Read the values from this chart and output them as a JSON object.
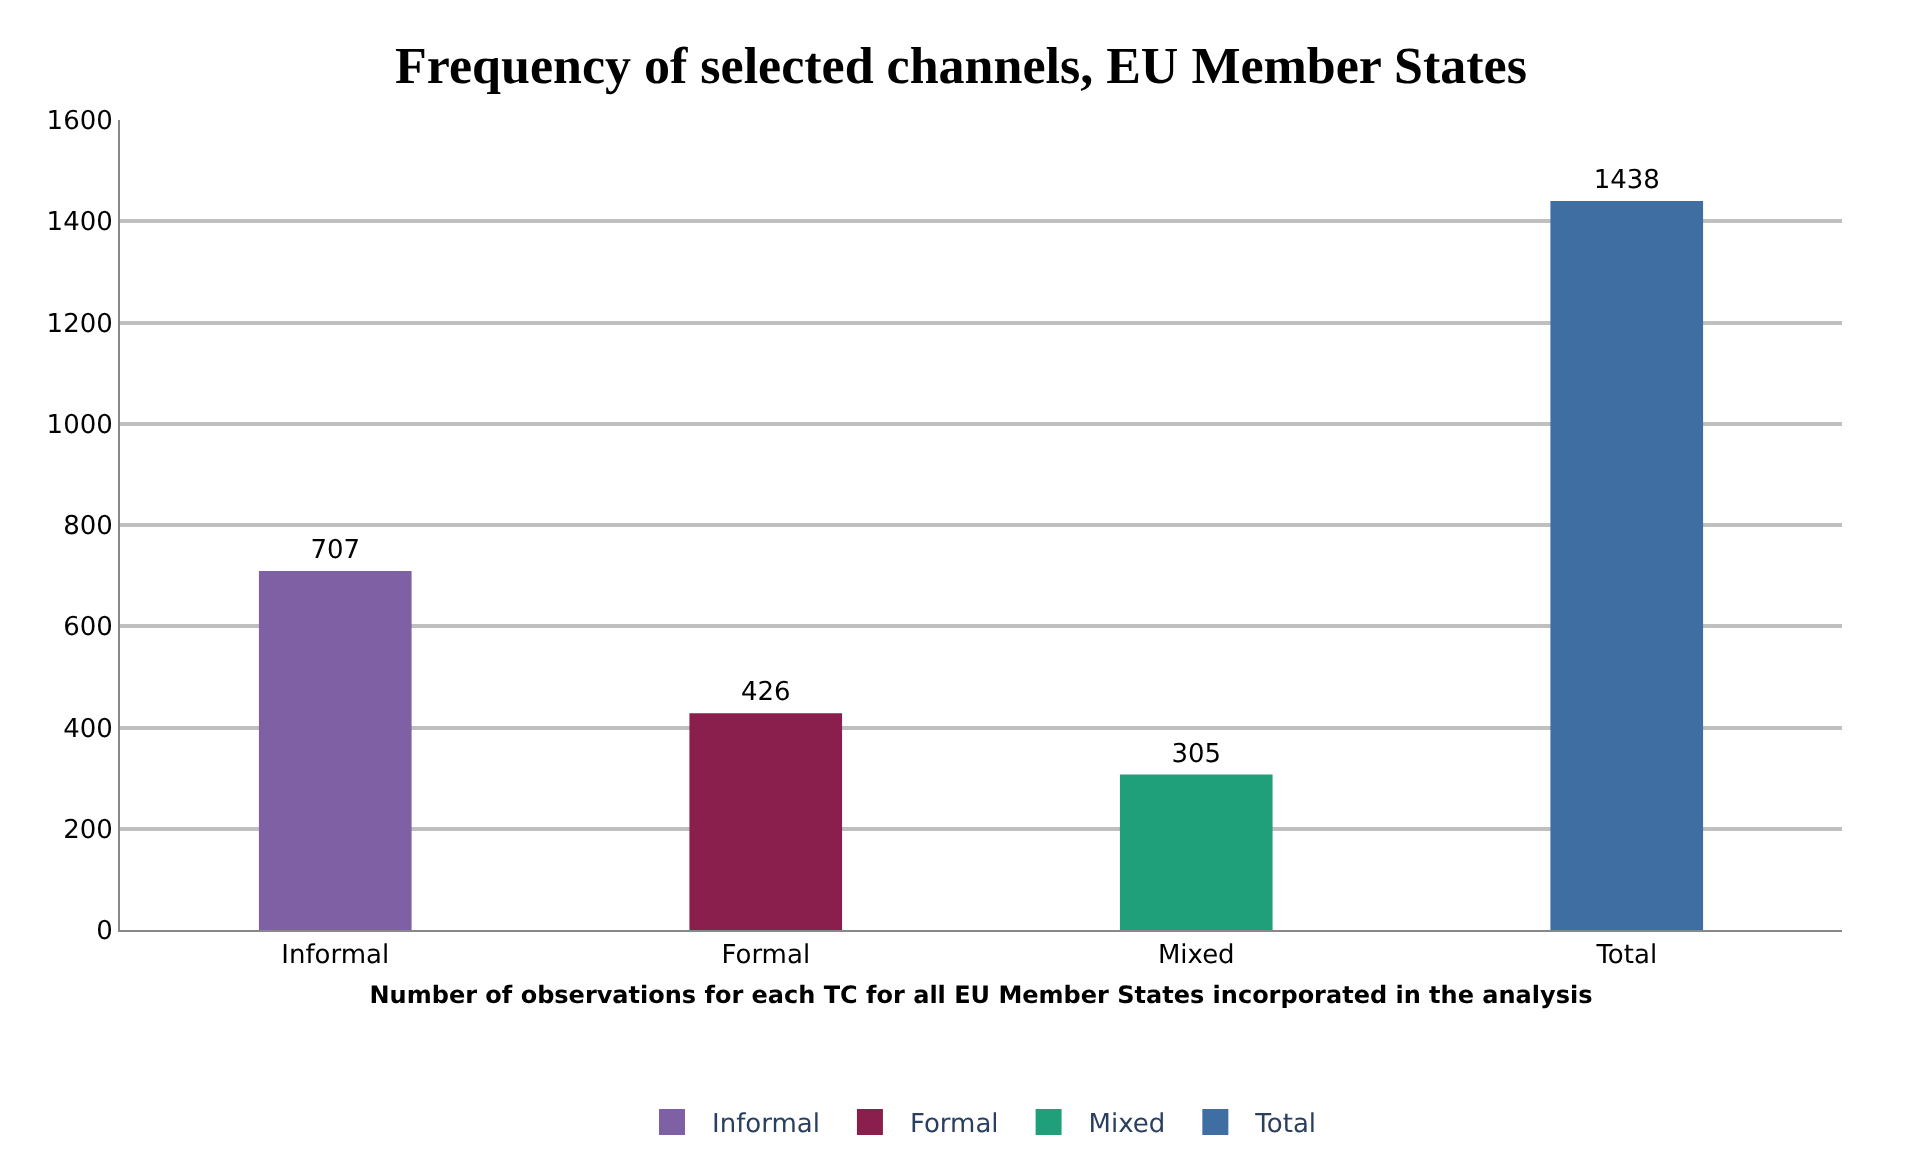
{
  "chart_data": {
    "type": "bar",
    "title": "Frequency of selected channels, EU Member States",
    "xlabel": "Number of observations for each TC for all EU Member States incorporated in the analysis",
    "categories": [
      "Informal",
      "Formal",
      "Mixed",
      "Total"
    ],
    "series": [
      {
        "name": "Informal",
        "color": "#8060a4",
        "values": [
          707,
          null,
          null,
          null
        ]
      },
      {
        "name": "Formal",
        "color": "#8a1f4e",
        "values": [
          null,
          426,
          null,
          null
        ]
      },
      {
        "name": "Mixed",
        "color": "#20a07a",
        "values": [
          null,
          null,
          305,
          null
        ]
      },
      {
        "name": "Total",
        "color": "#3f6ea2",
        "values": [
          null,
          null,
          null,
          1438
        ]
      }
    ],
    "ylim": [
      0,
      1600
    ],
    "yticks": [
      0,
      200,
      400,
      600,
      800,
      1000,
      1200,
      1400,
      1600
    ],
    "grid": "y",
    "legend": "bottom",
    "data_labels": true
  }
}
